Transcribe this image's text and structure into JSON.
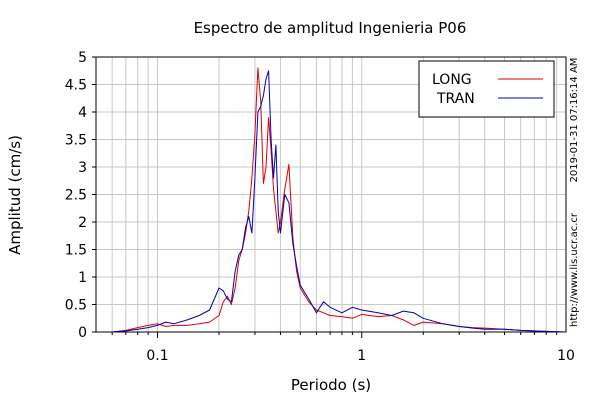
{
  "chart_data": {
    "type": "line",
    "title": "Espectro de amplitud Ingenieria P06",
    "xlabel": "Periodo (s)",
    "ylabel": "Amplitud (cm/s)",
    "xscale": "log",
    "xlim": [
      0.05,
      10
    ],
    "ylim": [
      0,
      5
    ],
    "x_ticks": [
      0.1,
      1,
      10
    ],
    "x_tick_labels": [
      "0.1",
      "1",
      "10"
    ],
    "y_ticks": [
      0,
      0.5,
      1,
      1.5,
      2,
      2.5,
      3,
      3.5,
      4,
      4.5,
      5
    ],
    "y_tick_labels": [
      "0",
      "0.5",
      "1",
      "1.5",
      "2",
      "2.5",
      "3",
      "3.5",
      "4",
      "4.5",
      "5"
    ],
    "grid": true,
    "legend_position": "top-right",
    "side_text_1": "2019-01-31 07:16:14 AM",
    "side_text_2": "http://www.lis.ucr.ac.cr",
    "series": [
      {
        "name": "LONG",
        "color": "#dd0000",
        "x": [
          0.06,
          0.07,
          0.08,
          0.09,
          0.1,
          0.11,
          0.12,
          0.14,
          0.16,
          0.18,
          0.2,
          0.21,
          0.22,
          0.23,
          0.24,
          0.25,
          0.26,
          0.27,
          0.28,
          0.29,
          0.3,
          0.31,
          0.32,
          0.33,
          0.34,
          0.35,
          0.36,
          0.37,
          0.38,
          0.39,
          0.4,
          0.42,
          0.44,
          0.46,
          0.48,
          0.5,
          0.55,
          0.6,
          0.65,
          0.7,
          0.8,
          0.9,
          1.0,
          1.2,
          1.4,
          1.6,
          1.8,
          2.0,
          2.5,
          3.0,
          3.5,
          4.0,
          5.0,
          6.0,
          8.0,
          10.0
        ],
        "y": [
          0.0,
          0.03,
          0.08,
          0.12,
          0.15,
          0.1,
          0.12,
          0.12,
          0.15,
          0.18,
          0.3,
          0.55,
          0.65,
          0.5,
          0.8,
          1.3,
          1.5,
          1.8,
          2.2,
          2.8,
          3.6,
          4.8,
          4.2,
          2.7,
          3.0,
          3.9,
          3.3,
          2.6,
          2.2,
          1.8,
          2.0,
          2.6,
          3.05,
          1.7,
          1.1,
          0.8,
          0.55,
          0.4,
          0.35,
          0.3,
          0.28,
          0.25,
          0.32,
          0.28,
          0.3,
          0.22,
          0.12,
          0.18,
          0.15,
          0.1,
          0.08,
          0.07,
          0.05,
          0.03,
          0.01,
          0.0
        ]
      },
      {
        "name": "TRAN",
        "color": "#0000bb",
        "x": [
          0.06,
          0.07,
          0.08,
          0.09,
          0.1,
          0.11,
          0.12,
          0.14,
          0.16,
          0.18,
          0.2,
          0.21,
          0.22,
          0.23,
          0.24,
          0.25,
          0.26,
          0.27,
          0.28,
          0.29,
          0.3,
          0.31,
          0.32,
          0.33,
          0.34,
          0.35,
          0.36,
          0.37,
          0.38,
          0.39,
          0.4,
          0.42,
          0.44,
          0.46,
          0.48,
          0.5,
          0.55,
          0.6,
          0.65,
          0.7,
          0.8,
          0.9,
          1.0,
          1.2,
          1.4,
          1.6,
          1.8,
          2.0,
          2.5,
          3.0,
          3.5,
          4.0,
          5.0,
          6.0,
          8.0,
          10.0
        ],
        "y": [
          0.0,
          0.02,
          0.05,
          0.08,
          0.12,
          0.18,
          0.15,
          0.22,
          0.3,
          0.4,
          0.8,
          0.75,
          0.6,
          0.55,
          1.1,
          1.4,
          1.5,
          1.9,
          2.1,
          1.8,
          2.8,
          4.0,
          4.1,
          4.3,
          4.6,
          4.75,
          3.5,
          2.8,
          3.4,
          2.2,
          1.8,
          2.5,
          2.35,
          1.6,
          1.2,
          0.85,
          0.6,
          0.35,
          0.55,
          0.45,
          0.35,
          0.45,
          0.4,
          0.35,
          0.3,
          0.38,
          0.35,
          0.25,
          0.15,
          0.1,
          0.07,
          0.05,
          0.05,
          0.03,
          0.01,
          0.0
        ]
      }
    ]
  }
}
